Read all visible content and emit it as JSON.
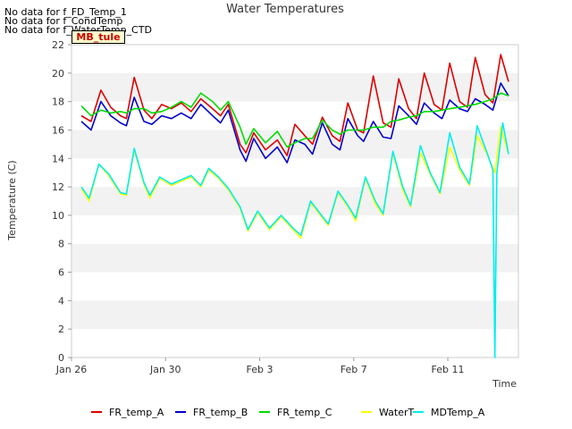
{
  "no_data_messages": [
    "No data for f_FD_Temp_1",
    "No data for f_CondTemp",
    "No data for f_WaterTemp_CTD"
  ],
  "site_badge": "MB_tule",
  "chart_data": {
    "type": "line",
    "title": "Water Temperatures",
    "xlabel": "Time",
    "ylabel": "Temperature (C)",
    "x_range": [
      "2023-01-26",
      "2023-02-14"
    ],
    "ylim": [
      0,
      22
    ],
    "y_ticks": [
      0,
      2,
      4,
      6,
      8,
      10,
      12,
      14,
      16,
      18,
      20,
      22
    ],
    "x_ticks": [
      {
        "date": "2023-01-26",
        "label": "Jan 26"
      },
      {
        "date": "2023-01-30",
        "label": "Jan 30"
      },
      {
        "date": "2023-02-03",
        "label": "Feb 3"
      },
      {
        "date": "2023-02-07",
        "label": "Feb 7"
      },
      {
        "date": "2023-02-11",
        "label": "Feb 11"
      }
    ],
    "grid": "horizontal bands",
    "legend_position": "bottom",
    "series": [
      {
        "name": "FR_temp_A",
        "color": "#dd0000",
        "points": [
          [
            "2023-01-26T10:00",
            17.0
          ],
          [
            "2023-01-26T20:00",
            16.6
          ],
          [
            "2023-01-27T06:00",
            18.8
          ],
          [
            "2023-01-27T16:00",
            17.6
          ],
          [
            "2023-01-28T02:00",
            17.0
          ],
          [
            "2023-01-28T08:00",
            16.8
          ],
          [
            "2023-01-28T16:00",
            19.7
          ],
          [
            "2023-01-29T02:00",
            17.4
          ],
          [
            "2023-01-29T10:00",
            16.8
          ],
          [
            "2023-01-29T20:00",
            17.8
          ],
          [
            "2023-01-30T06:00",
            17.5
          ],
          [
            "2023-01-30T16:00",
            17.9
          ],
          [
            "2023-01-31T02:00",
            17.3
          ],
          [
            "2023-01-31T12:00",
            18.2
          ],
          [
            "2023-02-01T00:00",
            17.5
          ],
          [
            "2023-02-01T08:00",
            17.0
          ],
          [
            "2023-02-01T16:00",
            17.8
          ],
          [
            "2023-02-02T04:00",
            15.0
          ],
          [
            "2023-02-02T10:00",
            14.4
          ],
          [
            "2023-02-02T18:00",
            15.8
          ],
          [
            "2023-02-03T06:00",
            14.6
          ],
          [
            "2023-02-03T18:00",
            15.3
          ],
          [
            "2023-02-04T04:00",
            14.2
          ],
          [
            "2023-02-04T12:00",
            16.4
          ],
          [
            "2023-02-04T22:00",
            15.6
          ],
          [
            "2023-02-05T06:00",
            15.0
          ],
          [
            "2023-02-05T16:00",
            16.9
          ],
          [
            "2023-02-06T02:00",
            15.6
          ],
          [
            "2023-02-06T10:00",
            15.2
          ],
          [
            "2023-02-06T18:00",
            17.9
          ],
          [
            "2023-02-07T04:00",
            16.0
          ],
          [
            "2023-02-07T10:00",
            15.8
          ],
          [
            "2023-02-07T20:00",
            19.8
          ],
          [
            "2023-02-08T06:00",
            16.5
          ],
          [
            "2023-02-08T14:00",
            16.2
          ],
          [
            "2023-02-08T22:00",
            19.6
          ],
          [
            "2023-02-09T08:00",
            17.5
          ],
          [
            "2023-02-09T16:00",
            16.8
          ],
          [
            "2023-02-10T00:00",
            20.0
          ],
          [
            "2023-02-10T10:00",
            17.8
          ],
          [
            "2023-02-10T18:00",
            17.4
          ],
          [
            "2023-02-11T02:00",
            20.7
          ],
          [
            "2023-02-11T12:00",
            18.0
          ],
          [
            "2023-02-11T20:00",
            17.6
          ],
          [
            "2023-02-12T04:00",
            21.1
          ],
          [
            "2023-02-12T14:00",
            18.5
          ],
          [
            "2023-02-12T22:00",
            17.9
          ],
          [
            "2023-02-13T06:00",
            21.3
          ],
          [
            "2023-02-13T14:00",
            19.4
          ]
        ]
      },
      {
        "name": "FR_temp_B",
        "color": "#0000cc",
        "points": [
          [
            "2023-01-26T10:00",
            16.6
          ],
          [
            "2023-01-26T20:00",
            16.0
          ],
          [
            "2023-01-27T06:00",
            18.0
          ],
          [
            "2023-01-27T16:00",
            17.0
          ],
          [
            "2023-01-28T02:00",
            16.5
          ],
          [
            "2023-01-28T08:00",
            16.3
          ],
          [
            "2023-01-28T16:00",
            18.3
          ],
          [
            "2023-01-29T02:00",
            16.6
          ],
          [
            "2023-01-29T10:00",
            16.4
          ],
          [
            "2023-01-29T20:00",
            17.0
          ],
          [
            "2023-01-30T06:00",
            16.8
          ],
          [
            "2023-01-30T16:00",
            17.2
          ],
          [
            "2023-01-31T02:00",
            16.8
          ],
          [
            "2023-01-31T12:00",
            17.8
          ],
          [
            "2023-02-01T00:00",
            17.0
          ],
          [
            "2023-02-01T08:00",
            16.5
          ],
          [
            "2023-02-01T16:00",
            17.4
          ],
          [
            "2023-02-02T04:00",
            14.6
          ],
          [
            "2023-02-02T10:00",
            13.8
          ],
          [
            "2023-02-02T18:00",
            15.4
          ],
          [
            "2023-02-03T06:00",
            14.0
          ],
          [
            "2023-02-03T18:00",
            14.8
          ],
          [
            "2023-02-04T04:00",
            13.7
          ],
          [
            "2023-02-04T12:00",
            15.3
          ],
          [
            "2023-02-04T22:00",
            15.0
          ],
          [
            "2023-02-05T06:00",
            14.3
          ],
          [
            "2023-02-05T16:00",
            16.5
          ],
          [
            "2023-02-06T02:00",
            15.0
          ],
          [
            "2023-02-06T10:00",
            14.6
          ],
          [
            "2023-02-06T18:00",
            16.8
          ],
          [
            "2023-02-07T04:00",
            15.6
          ],
          [
            "2023-02-07T10:00",
            15.2
          ],
          [
            "2023-02-07T20:00",
            16.6
          ],
          [
            "2023-02-08T06:00",
            15.5
          ],
          [
            "2023-02-08T14:00",
            15.4
          ],
          [
            "2023-02-08T22:00",
            17.7
          ],
          [
            "2023-02-09T08:00",
            17.0
          ],
          [
            "2023-02-09T16:00",
            16.4
          ],
          [
            "2023-02-10T00:00",
            17.9
          ],
          [
            "2023-02-10T10:00",
            17.2
          ],
          [
            "2023-02-10T18:00",
            16.8
          ],
          [
            "2023-02-11T02:00",
            18.1
          ],
          [
            "2023-02-11T12:00",
            17.5
          ],
          [
            "2023-02-11T20:00",
            17.3
          ],
          [
            "2023-02-12T04:00",
            18.2
          ],
          [
            "2023-02-12T14:00",
            17.8
          ],
          [
            "2023-02-12T22:00",
            17.4
          ],
          [
            "2023-02-13T06:00",
            19.3
          ],
          [
            "2023-02-13T14:00",
            18.4
          ]
        ]
      },
      {
        "name": "FR_temp_C",
        "color": "#00dd00",
        "points": [
          [
            "2023-01-26T10:00",
            17.7
          ],
          [
            "2023-01-26T20:00",
            17.0
          ],
          [
            "2023-01-27T06:00",
            17.4
          ],
          [
            "2023-01-27T16:00",
            17.2
          ],
          [
            "2023-01-28T02:00",
            17.3
          ],
          [
            "2023-01-28T08:00",
            17.2
          ],
          [
            "2023-01-28T16:00",
            17.5
          ],
          [
            "2023-01-29T02:00",
            17.5
          ],
          [
            "2023-01-29T10:00",
            17.2
          ],
          [
            "2023-01-29T20:00",
            17.3
          ],
          [
            "2023-01-30T06:00",
            17.6
          ],
          [
            "2023-01-30T16:00",
            18.0
          ],
          [
            "2023-01-31T02:00",
            17.6
          ],
          [
            "2023-01-31T12:00",
            18.6
          ],
          [
            "2023-02-01T00:00",
            18.0
          ],
          [
            "2023-02-01T08:00",
            17.4
          ],
          [
            "2023-02-01T16:00",
            18.0
          ],
          [
            "2023-02-02T04:00",
            16.2
          ],
          [
            "2023-02-02T10:00",
            15.0
          ],
          [
            "2023-02-02T18:00",
            16.1
          ],
          [
            "2023-02-03T06:00",
            15.1
          ],
          [
            "2023-02-03T18:00",
            15.9
          ],
          [
            "2023-02-04T04:00",
            14.8
          ],
          [
            "2023-02-04T12:00",
            15.1
          ],
          [
            "2023-02-04T22:00",
            15.4
          ],
          [
            "2023-02-05T06:00",
            15.4
          ],
          [
            "2023-02-05T16:00",
            16.7
          ],
          [
            "2023-02-06T02:00",
            16.0
          ],
          [
            "2023-02-06T10:00",
            15.7
          ],
          [
            "2023-02-06T18:00",
            16.0
          ],
          [
            "2023-02-07T04:00",
            16.0
          ],
          [
            "2023-02-07T10:00",
            16.0
          ],
          [
            "2023-02-07T20:00",
            16.2
          ],
          [
            "2023-02-08T06:00",
            16.2
          ],
          [
            "2023-02-08T14:00",
            16.6
          ],
          [
            "2023-02-08T22:00",
            16.7
          ],
          [
            "2023-02-09T08:00",
            16.9
          ],
          [
            "2023-02-09T16:00",
            17.0
          ],
          [
            "2023-02-10T00:00",
            17.3
          ],
          [
            "2023-02-10T10:00",
            17.3
          ],
          [
            "2023-02-10T18:00",
            17.4
          ],
          [
            "2023-02-11T02:00",
            17.5
          ],
          [
            "2023-02-11T12:00",
            17.6
          ],
          [
            "2023-02-11T20:00",
            17.7
          ],
          [
            "2023-02-12T04:00",
            17.8
          ],
          [
            "2023-02-12T14:00",
            18.0
          ],
          [
            "2023-02-12T22:00",
            18.2
          ],
          [
            "2023-02-13T06:00",
            18.6
          ],
          [
            "2023-02-13T14:00",
            18.4
          ]
        ]
      },
      {
        "name": "WaterT",
        "color": "#ffff00",
        "points": [
          [
            "2023-01-26T10:00",
            11.9
          ],
          [
            "2023-01-26T18:00",
            11.0
          ],
          [
            "2023-01-27T04:00",
            13.6
          ],
          [
            "2023-01-27T14:00",
            12.8
          ],
          [
            "2023-01-28T02:00",
            11.5
          ],
          [
            "2023-01-28T08:00",
            11.4
          ],
          [
            "2023-01-28T16:00",
            14.6
          ],
          [
            "2023-01-29T02:00",
            12.2
          ],
          [
            "2023-01-29T08:00",
            11.2
          ],
          [
            "2023-01-29T18:00",
            12.6
          ],
          [
            "2023-01-30T06:00",
            12.1
          ],
          [
            "2023-01-30T16:00",
            12.4
          ],
          [
            "2023-01-31T02:00",
            12.7
          ],
          [
            "2023-01-31T12:00",
            12.0
          ],
          [
            "2023-01-31T20:00",
            13.2
          ],
          [
            "2023-02-01T06:00",
            12.6
          ],
          [
            "2023-02-01T16:00",
            11.8
          ],
          [
            "2023-02-02T04:00",
            10.5
          ],
          [
            "2023-02-02T12:00",
            8.9
          ],
          [
            "2023-02-02T22:00",
            10.2
          ],
          [
            "2023-02-03T10:00",
            9.0
          ],
          [
            "2023-02-03T22:00",
            9.9
          ],
          [
            "2023-02-04T10:00",
            9.0
          ],
          [
            "2023-02-04T18:00",
            8.4
          ],
          [
            "2023-02-05T04:00",
            10.9
          ],
          [
            "2023-02-05T14:00",
            10.0
          ],
          [
            "2023-02-05T22:00",
            9.3
          ],
          [
            "2023-02-06T08:00",
            11.6
          ],
          [
            "2023-02-06T18:00",
            10.6
          ],
          [
            "2023-02-07T02:00",
            9.6
          ],
          [
            "2023-02-07T12:00",
            12.6
          ],
          [
            "2023-02-07T22:00",
            10.8
          ],
          [
            "2023-02-08T06:00",
            10.0
          ],
          [
            "2023-02-08T16:00",
            14.4
          ],
          [
            "2023-02-09T02:00",
            11.8
          ],
          [
            "2023-02-09T10:00",
            10.6
          ],
          [
            "2023-02-09T20:00",
            14.4
          ],
          [
            "2023-02-10T06:00",
            12.9
          ],
          [
            "2023-02-10T16:00",
            11.5
          ],
          [
            "2023-02-11T02:00",
            14.8
          ],
          [
            "2023-02-11T12:00",
            13.2
          ],
          [
            "2023-02-11T22:00",
            12.1
          ],
          [
            "2023-02-12T06:00",
            15.6
          ],
          [
            "2023-02-12T16:00",
            14.3
          ],
          [
            "2023-02-13T00:00",
            13.0
          ],
          [
            "2023-02-13T06:00",
            16.2
          ],
          [
            "2023-02-13T14:00",
            14.3
          ]
        ]
      },
      {
        "name": "MDTemp_A",
        "color": "#00eeee",
        "points": [
          [
            "2023-01-26T10:00",
            12.0
          ],
          [
            "2023-01-26T18:00",
            11.2
          ],
          [
            "2023-01-27T04:00",
            13.6
          ],
          [
            "2023-01-27T14:00",
            12.9
          ],
          [
            "2023-01-28T02:00",
            11.6
          ],
          [
            "2023-01-28T08:00",
            11.5
          ],
          [
            "2023-01-28T16:00",
            14.7
          ],
          [
            "2023-01-29T02:00",
            12.3
          ],
          [
            "2023-01-29T08:00",
            11.4
          ],
          [
            "2023-01-29T18:00",
            12.7
          ],
          [
            "2023-01-30T06:00",
            12.2
          ],
          [
            "2023-01-30T16:00",
            12.5
          ],
          [
            "2023-01-31T02:00",
            12.8
          ],
          [
            "2023-01-31T12:00",
            12.1
          ],
          [
            "2023-01-31T20:00",
            13.3
          ],
          [
            "2023-02-01T06:00",
            12.7
          ],
          [
            "2023-02-01T16:00",
            11.9
          ],
          [
            "2023-02-02T04:00",
            10.6
          ],
          [
            "2023-02-02T12:00",
            9.0
          ],
          [
            "2023-02-02T22:00",
            10.3
          ],
          [
            "2023-02-03T10:00",
            9.1
          ],
          [
            "2023-02-03T22:00",
            10.0
          ],
          [
            "2023-02-04T10:00",
            9.1
          ],
          [
            "2023-02-04T18:00",
            8.6
          ],
          [
            "2023-02-05T04:00",
            11.0
          ],
          [
            "2023-02-05T14:00",
            10.1
          ],
          [
            "2023-02-05T22:00",
            9.4
          ],
          [
            "2023-02-06T08:00",
            11.7
          ],
          [
            "2023-02-06T18:00",
            10.7
          ],
          [
            "2023-02-07T02:00",
            9.8
          ],
          [
            "2023-02-07T12:00",
            12.7
          ],
          [
            "2023-02-07T22:00",
            11.0
          ],
          [
            "2023-02-08T06:00",
            10.1
          ],
          [
            "2023-02-08T16:00",
            14.5
          ],
          [
            "2023-02-09T02:00",
            12.0
          ],
          [
            "2023-02-09T10:00",
            10.7
          ],
          [
            "2023-02-09T20:00",
            14.9
          ],
          [
            "2023-02-10T06:00",
            13.0
          ],
          [
            "2023-02-10T16:00",
            11.6
          ],
          [
            "2023-02-11T02:00",
            15.8
          ],
          [
            "2023-02-11T12:00",
            13.4
          ],
          [
            "2023-02-11T22:00",
            12.2
          ],
          [
            "2023-02-12T06:00",
            16.3
          ],
          [
            "2023-02-12T16:00",
            14.4
          ],
          [
            "2023-02-12T22:00",
            13.2
          ],
          [
            "2023-02-13T00:00",
            0.0
          ],
          [
            "2023-02-13T02:00",
            13.0
          ],
          [
            "2023-02-13T08:00",
            16.5
          ],
          [
            "2023-02-13T14:00",
            14.3
          ]
        ]
      }
    ]
  }
}
